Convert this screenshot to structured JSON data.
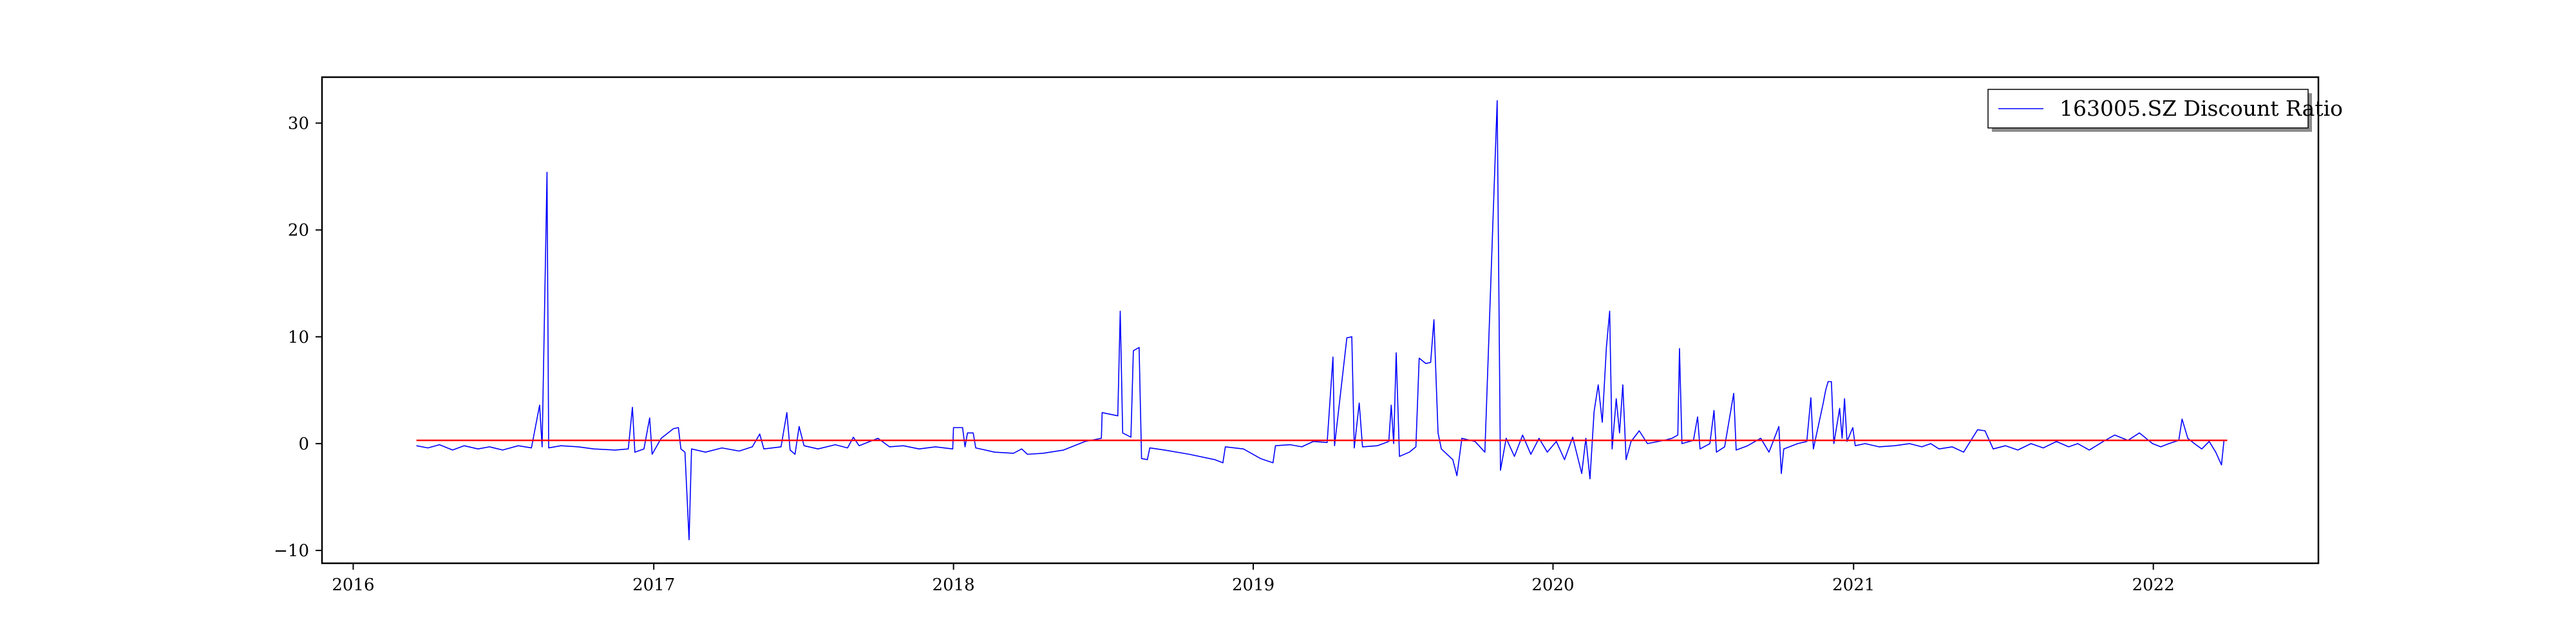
{
  "chart_data": {
    "type": "line",
    "title": "",
    "xlabel": "",
    "ylabel": "",
    "xlim": [
      "2015-11-24",
      "2022-07-21"
    ],
    "ylim": [
      -11.2,
      34.3
    ],
    "x_ticks": [
      "2016",
      "2017",
      "2018",
      "2019",
      "2020",
      "2021",
      "2022"
    ],
    "y_ticks": [
      -10,
      0,
      10,
      20,
      30
    ],
    "grid": false,
    "legend": {
      "position": "upper-right",
      "entries": [
        "163005.SZ Discount Ratio"
      ]
    },
    "colors": {
      "series": "#0000ff",
      "reference": "#ff0000"
    },
    "series": [
      {
        "name": "163005.SZ Discount Ratio",
        "points": [
          [
            "2016-03-18",
            -0.2
          ],
          [
            "2016-04-01",
            -0.4
          ],
          [
            "2016-04-15",
            -0.1
          ],
          [
            "2016-05-01",
            -0.6
          ],
          [
            "2016-05-15",
            -0.2
          ],
          [
            "2016-06-01",
            -0.5
          ],
          [
            "2016-06-15",
            -0.3
          ],
          [
            "2016-07-01",
            -0.6
          ],
          [
            "2016-07-20",
            -0.2
          ],
          [
            "2016-08-05",
            -0.4
          ],
          [
            "2016-08-15",
            3.6
          ],
          [
            "2016-08-18",
            -0.3
          ],
          [
            "2016-08-24",
            25.4
          ],
          [
            "2016-08-26",
            -0.4
          ],
          [
            "2016-09-10",
            -0.2
          ],
          [
            "2016-10-01",
            -0.3
          ],
          [
            "2016-10-20",
            -0.5
          ],
          [
            "2016-11-15",
            -0.6
          ],
          [
            "2016-12-01",
            -0.5
          ],
          [
            "2016-12-06",
            3.4
          ],
          [
            "2016-12-09",
            -0.8
          ],
          [
            "2016-12-20",
            -0.5
          ],
          [
            "2016-12-27",
            2.4
          ],
          [
            "2016-12-30",
            -1.0
          ],
          [
            "2017-01-10",
            0.5
          ],
          [
            "2017-01-25",
            1.4
          ],
          [
            "2017-01-31",
            1.5
          ],
          [
            "2017-02-03",
            -0.5
          ],
          [
            "2017-02-08",
            -0.8
          ],
          [
            "2017-02-13",
            -9.0
          ],
          [
            "2017-02-16",
            -0.5
          ],
          [
            "2017-03-05",
            -0.8
          ],
          [
            "2017-03-25",
            -0.4
          ],
          [
            "2017-04-15",
            -0.7
          ],
          [
            "2017-05-01",
            -0.3
          ],
          [
            "2017-05-10",
            0.9
          ],
          [
            "2017-05-15",
            -0.5
          ],
          [
            "2017-06-05",
            -0.3
          ],
          [
            "2017-06-12",
            2.9
          ],
          [
            "2017-06-16",
            -0.6
          ],
          [
            "2017-06-22",
            -1.0
          ],
          [
            "2017-06-27",
            1.6
          ],
          [
            "2017-07-03",
            -0.2
          ],
          [
            "2017-07-20",
            -0.5
          ],
          [
            "2017-08-10",
            -0.1
          ],
          [
            "2017-08-25",
            -0.4
          ],
          [
            "2017-09-01",
            0.6
          ],
          [
            "2017-09-08",
            -0.2
          ],
          [
            "2017-10-01",
            0.5
          ],
          [
            "2017-10-15",
            -0.3
          ],
          [
            "2017-11-01",
            -0.2
          ],
          [
            "2017-11-20",
            -0.5
          ],
          [
            "2017-12-10",
            -0.3
          ],
          [
            "2017-12-31",
            -0.5
          ],
          [
            "2018-01-01",
            1.5
          ],
          [
            "2018-01-12",
            1.5
          ],
          [
            "2018-01-15",
            -0.3
          ],
          [
            "2018-01-18",
            1.0
          ],
          [
            "2018-01-25",
            1.0
          ],
          [
            "2018-01-28",
            -0.4
          ],
          [
            "2018-02-20",
            -0.8
          ],
          [
            "2018-03-15",
            -0.9
          ],
          [
            "2018-03-25",
            -0.5
          ],
          [
            "2018-04-01",
            -1.0
          ],
          [
            "2018-04-20",
            -0.9
          ],
          [
            "2018-05-15",
            -0.6
          ],
          [
            "2018-06-10",
            0.2
          ],
          [
            "2018-06-30",
            0.5
          ],
          [
            "2018-07-01",
            2.9
          ],
          [
            "2018-07-20",
            2.6
          ],
          [
            "2018-07-23",
            12.4
          ],
          [
            "2018-07-26",
            1.0
          ],
          [
            "2018-08-05",
            0.6
          ],
          [
            "2018-08-08",
            8.7
          ],
          [
            "2018-08-15",
            9.0
          ],
          [
            "2018-08-18",
            -1.4
          ],
          [
            "2018-08-25",
            -1.5
          ],
          [
            "2018-08-28",
            -0.4
          ],
          [
            "2018-09-15",
            -0.6
          ],
          [
            "2018-10-15",
            -1.0
          ],
          [
            "2018-11-15",
            -1.5
          ],
          [
            "2018-11-25",
            -1.8
          ],
          [
            "2018-11-28",
            -0.3
          ],
          [
            "2018-12-20",
            -0.5
          ],
          [
            "2019-01-10",
            -1.4
          ],
          [
            "2019-01-25",
            -1.8
          ],
          [
            "2019-01-28",
            -0.2
          ],
          [
            "2019-02-15",
            -0.1
          ],
          [
            "2019-03-01",
            -0.3
          ],
          [
            "2019-03-15",
            0.2
          ],
          [
            "2019-04-01",
            0.1
          ],
          [
            "2019-04-08",
            8.1
          ],
          [
            "2019-04-10",
            -0.2
          ],
          [
            "2019-04-25",
            9.9
          ],
          [
            "2019-05-01",
            10.0
          ],
          [
            "2019-05-04",
            -0.4
          ],
          [
            "2019-05-10",
            3.8
          ],
          [
            "2019-05-14",
            -0.3
          ],
          [
            "2019-06-01",
            -0.2
          ],
          [
            "2019-06-15",
            0.2
          ],
          [
            "2019-06-18",
            3.6
          ],
          [
            "2019-06-21",
            0.0
          ],
          [
            "2019-06-24",
            8.5
          ],
          [
            "2019-06-28",
            -1.2
          ],
          [
            "2019-07-10",
            -0.8
          ],
          [
            "2019-07-18",
            -0.3
          ],
          [
            "2019-07-22",
            8.0
          ],
          [
            "2019-07-30",
            7.5
          ],
          [
            "2019-08-05",
            7.6
          ],
          [
            "2019-08-09",
            11.6
          ],
          [
            "2019-08-14",
            1.0
          ],
          [
            "2019-08-18",
            -0.5
          ],
          [
            "2019-09-01",
            -1.5
          ],
          [
            "2019-09-06",
            -3.0
          ],
          [
            "2019-09-12",
            0.5
          ],
          [
            "2019-09-28",
            0.2
          ],
          [
            "2019-10-10",
            -0.8
          ],
          [
            "2019-10-25",
            32.1
          ],
          [
            "2019-10-29",
            -2.5
          ],
          [
            "2019-11-05",
            0.5
          ],
          [
            "2019-11-15",
            -1.2
          ],
          [
            "2019-11-25",
            0.8
          ],
          [
            "2019-12-05",
            -1.0
          ],
          [
            "2019-12-15",
            0.5
          ],
          [
            "2019-12-25",
            -0.8
          ],
          [
            "2020-01-05",
            0.2
          ],
          [
            "2020-01-15",
            -1.5
          ],
          [
            "2020-01-25",
            0.6
          ],
          [
            "2020-02-05",
            -2.8
          ],
          [
            "2020-02-10",
            0.5
          ],
          [
            "2020-02-15",
            -3.3
          ],
          [
            "2020-02-20",
            3.0
          ],
          [
            "2020-02-25",
            5.5
          ],
          [
            "2020-03-01",
            2.0
          ],
          [
            "2020-03-06",
            9.0
          ],
          [
            "2020-03-10",
            12.4
          ],
          [
            "2020-03-13",
            -0.5
          ],
          [
            "2020-03-18",
            4.2
          ],
          [
            "2020-03-22",
            1.0
          ],
          [
            "2020-03-26",
            5.5
          ],
          [
            "2020-03-30",
            -1.5
          ],
          [
            "2020-04-05",
            0.2
          ],
          [
            "2020-04-15",
            1.2
          ],
          [
            "2020-04-25",
            0.0
          ],
          [
            "2020-05-15",
            0.3
          ],
          [
            "2020-05-25",
            0.5
          ],
          [
            "2020-06-01",
            0.8
          ],
          [
            "2020-06-03",
            8.9
          ],
          [
            "2020-06-06",
            0.0
          ],
          [
            "2020-06-20",
            0.3
          ],
          [
            "2020-06-25",
            2.5
          ],
          [
            "2020-06-28",
            -0.5
          ],
          [
            "2020-07-10",
            0.0
          ],
          [
            "2020-07-15",
            3.1
          ],
          [
            "2020-07-18",
            -0.8
          ],
          [
            "2020-07-28",
            -0.3
          ],
          [
            "2020-08-08",
            4.7
          ],
          [
            "2020-08-11",
            -0.6
          ],
          [
            "2020-08-25",
            -0.2
          ],
          [
            "2020-09-10",
            0.5
          ],
          [
            "2020-09-20",
            -0.8
          ],
          [
            "2020-10-02",
            1.6
          ],
          [
            "2020-10-05",
            -2.8
          ],
          [
            "2020-10-08",
            -0.5
          ],
          [
            "2020-10-25",
            0.0
          ],
          [
            "2020-11-05",
            0.2
          ],
          [
            "2020-11-10",
            4.3
          ],
          [
            "2020-11-13",
            -0.5
          ],
          [
            "2020-11-25",
            3.8
          ],
          [
            "2020-11-28",
            5.0
          ],
          [
            "2020-12-01",
            5.8
          ],
          [
            "2020-12-05",
            5.8
          ],
          [
            "2020-12-08",
            0.0
          ],
          [
            "2020-12-15",
            3.3
          ],
          [
            "2020-12-18",
            0.5
          ],
          [
            "2020-12-21",
            4.2
          ],
          [
            "2020-12-24",
            0.2
          ],
          [
            "2020-12-31",
            1.5
          ],
          [
            "2021-01-03",
            -0.2
          ],
          [
            "2021-01-15",
            0.0
          ],
          [
            "2021-02-01",
            -0.3
          ],
          [
            "2021-02-20",
            -0.2
          ],
          [
            "2021-03-10",
            0.0
          ],
          [
            "2021-03-25",
            -0.3
          ],
          [
            "2021-04-05",
            0.0
          ],
          [
            "2021-04-15",
            -0.5
          ],
          [
            "2021-05-01",
            -0.3
          ],
          [
            "2021-05-15",
            -0.8
          ],
          [
            "2021-06-01",
            1.3
          ],
          [
            "2021-06-10",
            1.2
          ],
          [
            "2021-06-20",
            -0.5
          ],
          [
            "2021-07-05",
            -0.2
          ],
          [
            "2021-07-20",
            -0.6
          ],
          [
            "2021-08-05",
            0.0
          ],
          [
            "2021-08-20",
            -0.4
          ],
          [
            "2021-09-05",
            0.2
          ],
          [
            "2021-09-20",
            -0.3
          ],
          [
            "2021-10-01",
            0.0
          ],
          [
            "2021-10-15",
            -0.6
          ],
          [
            "2021-11-01",
            0.2
          ],
          [
            "2021-11-15",
            0.8
          ],
          [
            "2021-12-01",
            0.3
          ],
          [
            "2021-12-15",
            1.0
          ],
          [
            "2021-12-31",
            0.0
          ],
          [
            "2022-01-10",
            -0.3
          ],
          [
            "2022-01-20",
            0.0
          ],
          [
            "2022-02-01",
            0.3
          ],
          [
            "2022-02-05",
            2.3
          ],
          [
            "2022-02-12",
            0.5
          ],
          [
            "2022-02-20",
            0.0
          ],
          [
            "2022-03-01",
            -0.5
          ],
          [
            "2022-03-10",
            0.2
          ],
          [
            "2022-03-18",
            -0.8
          ],
          [
            "2022-03-25",
            -2.0
          ],
          [
            "2022-03-28",
            0.3
          ],
          [
            "2022-04-01",
            0.3
          ]
        ]
      }
    ],
    "reference_line": {
      "y": 0.3,
      "x_range": [
        "2016-03-18",
        "2022-04-01"
      ]
    }
  }
}
